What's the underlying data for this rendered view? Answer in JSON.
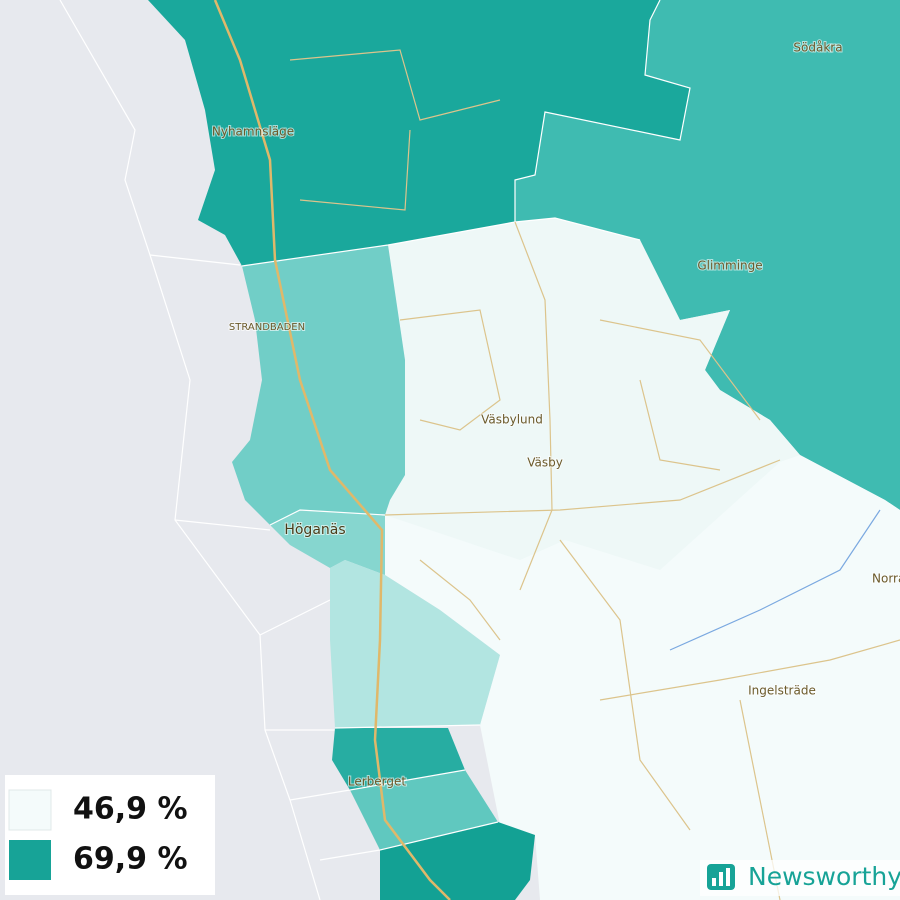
{
  "map": {
    "places": [
      "Nyhamnsläge",
      "Södåkra",
      "Glimminge",
      "STRANDBADEN",
      "Väsbylund",
      "Väsby",
      "Höganäs",
      "Norra",
      "Ingelsträde",
      "Lerberget"
    ],
    "legend": [
      {
        "label": "46,9 %",
        "color": "#f4fbfb"
      },
      {
        "label": "69,9 %",
        "color": "#17a397"
      }
    ],
    "brand": "Newsworthy"
  }
}
